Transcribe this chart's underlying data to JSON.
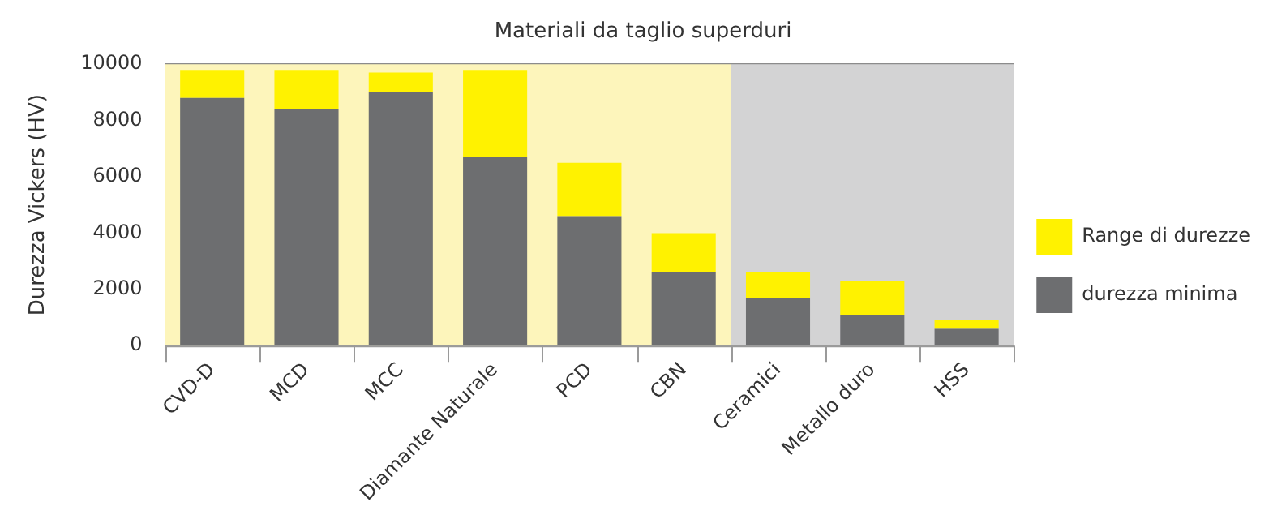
{
  "chart_data": {
    "type": "bar",
    "title": "Materiali da taglio superduri",
    "ylabel": "Durezza Vickers (HV)",
    "categories": [
      "CVD-D",
      "MCD",
      "MCC",
      "Diamante Naturale",
      "PCD",
      "CBN",
      "Ceramici",
      "Metallo duro",
      "HSS"
    ],
    "stacked": true,
    "series": [
      {
        "name": "durezza minima",
        "color": "#6d6e70",
        "values": [
          8800,
          8400,
          9000,
          6700,
          4600,
          2600,
          1700,
          1100,
          600
        ]
      },
      {
        "name": "Range di durezze",
        "color": "#fff200",
        "values": [
          1000,
          1400,
          700,
          3100,
          1900,
          1400,
          900,
          1200,
          300
        ]
      }
    ],
    "bands": [
      {
        "axis": "x",
        "from": "CVD-D",
        "to": "CBN",
        "color": "#fdf5bb"
      },
      {
        "axis": "x",
        "from": "Ceramici",
        "to": "HSS",
        "color": "#d3d3d4"
      }
    ],
    "ylim": [
      0,
      10000
    ],
    "yticks": [
      0,
      2000,
      4000,
      6000,
      8000,
      10000
    ],
    "grid": "y",
    "legend": "right"
  }
}
